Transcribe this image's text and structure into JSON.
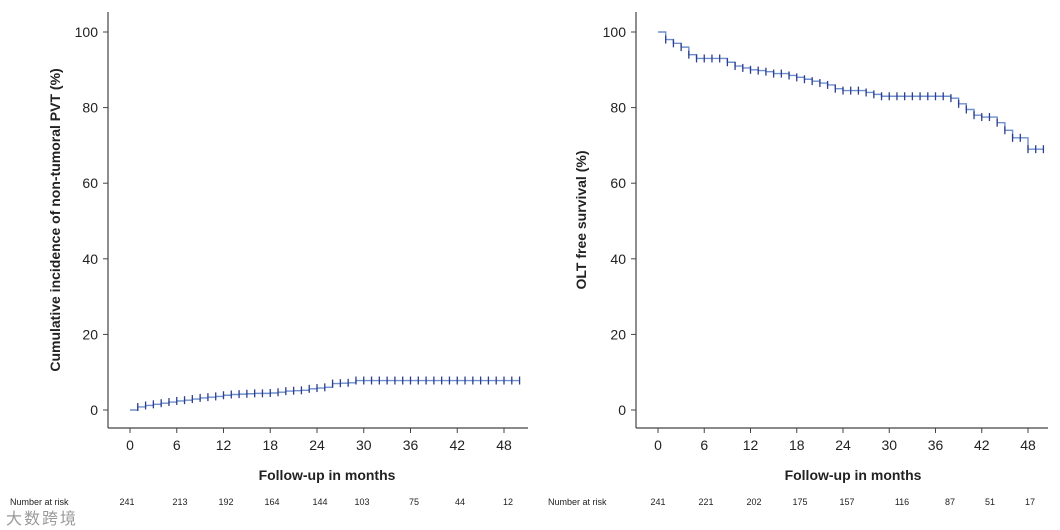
{
  "chart_data": [
    {
      "type": "line",
      "title": "",
      "xlabel": "Follow-up in months",
      "ylabel": "Cumulative incidence of non-tumoral PVT (%)",
      "xlim": [
        0,
        50
      ],
      "ylim": [
        0,
        100
      ],
      "xticks": [
        0,
        6,
        12,
        18,
        24,
        30,
        36,
        42,
        48
      ],
      "yticks": [
        0,
        20,
        40,
        60,
        80,
        100
      ],
      "series": [
        {
          "name": "Cumulative incidence",
          "x": [
            0,
            1,
            2,
            3,
            4,
            5,
            6,
            7,
            8,
            9,
            10,
            11,
            12,
            13,
            14,
            15,
            16,
            17,
            18,
            19,
            20,
            21,
            22,
            23,
            24,
            25,
            26,
            27,
            28,
            29,
            30,
            31,
            32,
            33,
            34,
            35,
            36,
            37,
            38,
            39,
            40,
            41,
            42,
            43,
            44,
            45,
            46,
            47,
            48,
            49,
            50
          ],
          "y": [
            0,
            0.8,
            1.2,
            1.5,
            1.8,
            2.1,
            2.4,
            2.6,
            2.9,
            3.2,
            3.4,
            3.6,
            3.9,
            4.1,
            4.2,
            4.3,
            4.4,
            4.4,
            4.5,
            4.7,
            5.0,
            5.1,
            5.2,
            5.6,
            5.8,
            6.0,
            7.0,
            7.1,
            7.2,
            7.8,
            7.8,
            7.8,
            7.8,
            7.8,
            7.8,
            7.8,
            7.8,
            7.8,
            7.8,
            7.8,
            7.8,
            7.8,
            7.8,
            7.8,
            7.8,
            7.8,
            7.8,
            7.8,
            7.8,
            7.8,
            7.8
          ]
        }
      ],
      "risk_table": {
        "label": "Number at risk",
        "values": [
          "241",
          "213",
          "192",
          "164",
          "144",
          "103",
          "75",
          "44",
          "12"
        ]
      }
    },
    {
      "type": "line",
      "title": "",
      "xlabel": "Follow-up in months",
      "ylabel": "OLT free survival (%)",
      "xlim": [
        0,
        50
      ],
      "ylim": [
        0,
        100
      ],
      "xticks": [
        0,
        6,
        12,
        18,
        24,
        30,
        36,
        42,
        48
      ],
      "yticks": [
        0,
        20,
        40,
        60,
        80,
        100
      ],
      "series": [
        {
          "name": "OLT free survival",
          "x": [
            0,
            1,
            2,
            3,
            4,
            5,
            6,
            7,
            8,
            9,
            10,
            11,
            12,
            13,
            14,
            15,
            16,
            17,
            18,
            19,
            20,
            21,
            22,
            23,
            24,
            25,
            26,
            27,
            28,
            29,
            30,
            31,
            32,
            33,
            34,
            35,
            36,
            37,
            38,
            39,
            40,
            41,
            42,
            43,
            44,
            45,
            46,
            47,
            48,
            49,
            50
          ],
          "y": [
            100,
            98,
            97,
            96,
            94,
            93,
            93,
            93,
            93,
            92,
            91,
            90.5,
            90,
            89.8,
            89.5,
            89,
            89,
            88.5,
            88,
            87.5,
            87,
            86.5,
            86,
            85,
            84.5,
            84.5,
            84.5,
            84,
            83.5,
            83,
            83,
            83,
            83,
            83,
            83,
            83,
            83,
            83,
            82.5,
            81,
            79.5,
            78,
            77.5,
            77.5,
            76,
            74,
            72,
            72,
            69,
            69,
            69
          ]
        }
      ],
      "risk_table": {
        "label": "Number at risk",
        "values": [
          "241",
          "221",
          "202",
          "175",
          "157",
          "116",
          "87",
          "51",
          "17"
        ]
      }
    }
  ],
  "watermark": "大数跨境"
}
